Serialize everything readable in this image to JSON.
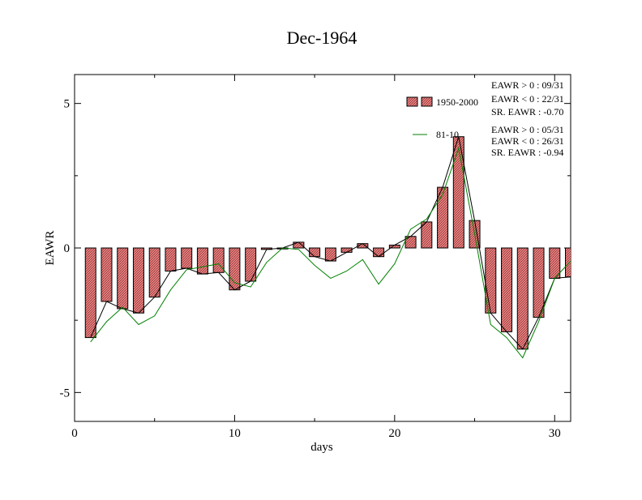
{
  "chart_data": {
    "type": "bar",
    "title": "Dec-1964",
    "xlabel": "days",
    "ylabel": "EAWR",
    "xlim": [
      0,
      31
    ],
    "ylim": [
      -6,
      6
    ],
    "x_ticks": [
      0,
      10,
      20,
      30
    ],
    "x_tick_labels": [
      "0",
      "10",
      "20",
      "30"
    ],
    "y_ticks": [
      -5,
      0,
      5
    ],
    "y_tick_labels": [
      "-5",
      "0",
      "5"
    ],
    "grid": false,
    "legend_position": "top-right",
    "x": [
      1,
      2,
      3,
      4,
      5,
      6,
      7,
      8,
      9,
      10,
      11,
      12,
      13,
      14,
      15,
      16,
      17,
      18,
      19,
      20,
      21,
      22,
      23,
      24,
      25,
      26,
      27,
      28,
      29,
      30,
      31
    ],
    "series": [
      {
        "name": "1950-2000",
        "kind": "bar",
        "color": "#f08080",
        "values": [
          -3.1,
          -1.85,
          -2.1,
          -2.25,
          -1.7,
          -0.8,
          -0.7,
          -0.9,
          -0.85,
          -1.45,
          -1.15,
          -0.05,
          0.0,
          0.2,
          -0.3,
          -0.45,
          -0.15,
          0.15,
          -0.3,
          0.1,
          0.4,
          0.9,
          2.1,
          3.85,
          0.95,
          -2.25,
          -2.9,
          -3.5,
          -2.4,
          -1.05,
          -1.0
        ]
      },
      {
        "name": "",
        "kind": "line",
        "color": "#000000",
        "values": [
          -3.1,
          -1.85,
          -2.1,
          -2.25,
          -1.7,
          -0.8,
          -0.7,
          -0.9,
          -0.85,
          -1.45,
          -1.15,
          -0.05,
          0.0,
          0.2,
          -0.3,
          -0.45,
          -0.15,
          0.15,
          -0.3,
          0.1,
          0.4,
          0.9,
          2.1,
          3.85,
          0.95,
          -2.25,
          -2.9,
          -3.5,
          -2.4,
          -1.05,
          -1.0
        ]
      },
      {
        "name": "81-10",
        "kind": "line",
        "color": "#008000",
        "values": [
          -3.25,
          -2.55,
          -2.05,
          -2.65,
          -2.35,
          -1.45,
          -0.75,
          -0.65,
          -0.55,
          -1.2,
          -1.35,
          -0.5,
          0.0,
          -0.05,
          -0.6,
          -1.05,
          -0.8,
          -0.4,
          -1.25,
          -0.55,
          0.65,
          1.0,
          1.85,
          3.45,
          0.5,
          -2.65,
          -3.1,
          -3.8,
          -2.55,
          -1.05,
          -0.45
        ]
      }
    ],
    "annotations": [
      {
        "group": "1950-2000",
        "lines": [
          "EAWR > 0 : 09/31",
          "EAWR < 0 : 22/31",
          "SR. EAWR : -0.70"
        ]
      },
      {
        "group": "81-10",
        "lines": [
          "EAWR > 0 : 05/31",
          "EAWR < 0 : 26/31",
          "SR. EAWR : -0.94"
        ]
      }
    ]
  }
}
